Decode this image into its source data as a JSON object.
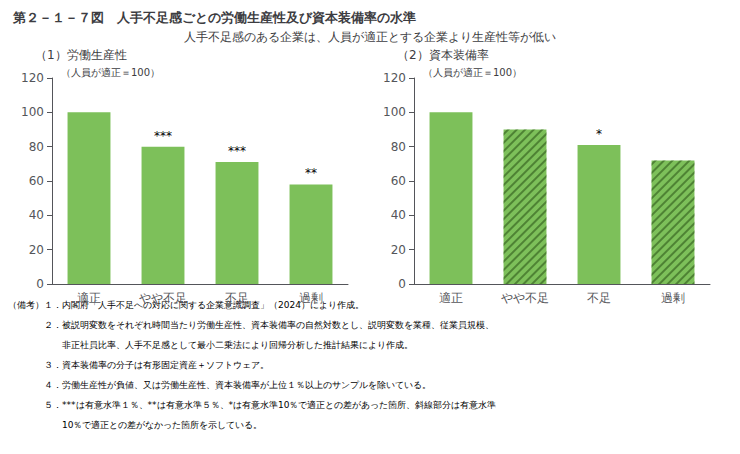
{
  "title": "第２－１－７図　人手不足感ごとの労働生産性及び資本装備率の水準",
  "subtitle": "人手不足感のある企業は、人員が適正とする企業より生産性等が低い",
  "notes": [
    "（備考）１．内閣府「人手不足への対応に関する企業意識調査」（2024）により作成。",
    "　　　　２．被説明変数をそれぞれ時間当たり労働生産性、資本装備率の自然対数とし、説明変数を業種、従業員規模、",
    "　　　　　　非正社員比率、人手不足感として最小二乗法により回帰分析した推計結果により作成。",
    "　　　　３．資本装備率の分子は有形固定資産＋ソフトウェア。",
    "　　　　４．労働生産性が負値、又は労働生産性、資本装備率が上位１％以上のサンプルを除いている。",
    "　　　　５．***は有意水準１％、**は有意水準５％、*は有意水準10％で適正との差があった箇所、斜線部分は有意水準",
    "　　　　　　10％で適正との差がなかった箇所を示している。"
  ],
  "chart_data": [
    {
      "type": "bar",
      "title": "（1）労働生産性",
      "annotation": "（人員が適正＝100）",
      "categories": [
        "適正",
        "やや不足",
        "不足",
        "過剰"
      ],
      "values": [
        100,
        80,
        71,
        58
      ],
      "annotations": [
        null,
        "***",
        "***",
        "**"
      ],
      "hatched": [
        false,
        false,
        false,
        false
      ],
      "color": "#7DC05A",
      "ylim": [
        0,
        120
      ],
      "yticks": [
        0,
        20,
        40,
        60,
        80,
        100,
        120
      ],
      "grid": false
    },
    {
      "type": "bar",
      "title": "（2）資本装備率",
      "annotation": "（人員が適正＝100）",
      "categories": [
        "適正",
        "やや不足",
        "不足",
        "過剰"
      ],
      "values": [
        100,
        90,
        81,
        72
      ],
      "annotations": [
        null,
        null,
        "*",
        null
      ],
      "hatched": [
        false,
        true,
        false,
        true
      ],
      "color": "#7DC05A",
      "ylim": [
        0,
        120
      ],
      "yticks": [
        0,
        20,
        40,
        60,
        80,
        100,
        120
      ],
      "grid": false
    }
  ]
}
